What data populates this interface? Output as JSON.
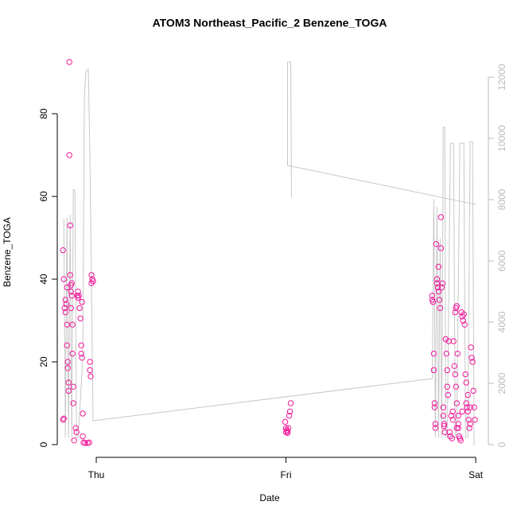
{
  "chart_data": {
    "type": "scatter",
    "title": "ATOM3 Northeast_Pacific_2 Benzene_TOGA",
    "x_label": "Date",
    "y_label": "Benzene_TOGA",
    "xlim": [
      -4.93,
      49.6
    ],
    "xticks": [
      {
        "value": 0,
        "label": "Thu"
      },
      {
        "value": 24,
        "label": "Fri"
      },
      {
        "value": 48,
        "label": "Sat"
      }
    ],
    "ylim": [
      -3.08,
      96.15
    ],
    "yticks": [
      0,
      20,
      40,
      60,
      80
    ],
    "y2lim": [
      -416,
      12987
    ],
    "y2ticks": [
      0,
      2000,
      4000,
      6000,
      8000,
      10000,
      12000
    ],
    "y2_color": "#bbbbbb",
    "series": [
      {
        "type": "scatter",
        "color": "#f0189a",
        "x": [
          -4.2,
          -4.1,
          -4.2,
          -4.1,
          -4.0,
          -3.9,
          -3.9,
          -3.8,
          -3.7,
          -3.7,
          -3.6,
          -3.6,
          -3.5,
          -3.5,
          -3.4,
          -3.4,
          -3.3,
          -3.3,
          -3.2,
          -3.2,
          -3.1,
          -3.1,
          -3.0,
          -3.0,
          -2.9,
          -2.9,
          -2.8,
          -2.6,
          -2.5,
          -2.4,
          -2.3,
          -2.2,
          -2.1,
          -2.0,
          -1.9,
          -1.9,
          -1.8,
          -1.7,
          -1.7,
          -1.6,
          -1.4,
          -1.1,
          -0.9,
          -0.8,
          -0.8,
          -0.7,
          -0.6,
          -0.5,
          -0.4,
          -0.6,
          -2.3,
          -1.8,
          -3.7,
          -3.2,
          23.9,
          24.0,
          24.0,
          24.1,
          24.2,
          24.3,
          24.4,
          24.5,
          24.6,
          24.2,
          42.5,
          42.5,
          42.6,
          42.7,
          42.7,
          42.8,
          42.8,
          42.9,
          42.9,
          43.0,
          43.1,
          43.1,
          43.2,
          43.3,
          43.3,
          43.4,
          43.5,
          43.6,
          43.6,
          43.7,
          43.8,
          43.9,
          43.9,
          44.0,
          44.0,
          44.1,
          44.2,
          44.3,
          44.4,
          44.4,
          44.5,
          44.6,
          44.7,
          44.8,
          44.9,
          45.0,
          45.1,
          45.1,
          45.2,
          45.3,
          45.4,
          45.5,
          45.6,
          45.7,
          45.8,
          45.8,
          45.9,
          46.0,
          46.1,
          45.4,
          45.5,
          45.6,
          46.2,
          46.3,
          46.4,
          46.5,
          46.6,
          46.7,
          46.8,
          46.9,
          47.0,
          47.1,
          47.2,
          47.3,
          47.4,
          47.5,
          47.6,
          47.7,
          47.8,
          47.9,
          45.6,
          45.8,
          46.3,
          46.8,
          47.0,
          47.3
        ],
        "values": [
          47,
          40,
          6,
          6.3,
          33,
          35,
          32,
          34,
          29,
          24,
          18.5,
          20,
          13,
          15,
          92.5,
          70,
          53,
          41,
          37,
          33,
          39,
          36,
          29,
          22,
          14,
          10,
          1,
          4,
          3,
          36,
          35.5,
          36,
          33,
          30.5,
          24,
          22,
          21,
          7.5,
          2,
          0.5,
          0.4,
          0.4,
          0.5,
          20,
          18,
          16.5,
          41,
          40,
          39.5,
          39,
          37,
          34.5,
          38,
          38.5,
          5.5,
          3,
          4,
          3.5,
          2.8,
          4,
          7,
          8,
          10,
          3.2,
          35,
          36,
          34.5,
          22,
          18,
          10,
          9,
          5,
          4,
          48.5,
          40,
          39,
          38,
          43,
          37,
          35,
          33,
          55,
          47.5,
          38,
          39,
          9,
          7,
          5,
          4.5,
          3,
          25.5,
          22,
          18,
          14,
          12,
          25,
          3,
          2,
          7,
          1.5,
          8,
          6,
          25,
          19,
          17,
          14,
          10,
          22,
          7,
          4,
          2,
          1.5,
          1,
          32,
          33,
          33.5,
          32,
          31,
          30,
          31.5,
          29,
          17,
          15,
          9,
          8,
          6,
          4,
          5,
          23.5,
          21,
          20,
          13,
          9,
          6,
          4,
          5,
          8,
          10,
          12,
          9
        ]
      },
      {
        "type": "line",
        "color": "#c8c8c8",
        "axis": "y2",
        "x": [
          -4.1,
          -3.9,
          -3.7,
          -3.5,
          -3.3,
          -3.1,
          -2.9,
          -2.7,
          -2.5,
          -2.3,
          -2.1,
          -1.7,
          -1.5,
          -1.3,
          -1.0,
          -0.8,
          -0.4,
          42.5,
          42.7,
          42.9,
          43.1,
          43.3,
          43.5,
          43.7,
          43.9,
          44.1,
          44.2,
          44.4,
          44.8,
          45.2,
          45.4,
          45.6,
          46.0,
          46.5,
          46.7,
          47.0,
          47.3,
          47.6,
          47.8,
          null,
          24.7,
          24.6,
          24.2,
          24.2,
          48.0
        ],
        "values": [
          7377,
          234,
          7429,
          234,
          7506,
          234,
          8338,
          8286,
          234,
          234,
          1013,
          2831,
          11403,
          12182,
          12260,
          9325,
          779,
          2156,
          8026,
          234,
          7766,
          234,
          6727,
          234,
          10364,
          10364,
          234,
          234,
          9844,
          9844,
          234,
          234,
          9844,
          9844,
          234,
          234,
          9896,
          9896,
          -26,
          null,
          8078,
          12494,
          12494,
          9117,
          7844
        ]
      }
    ]
  }
}
